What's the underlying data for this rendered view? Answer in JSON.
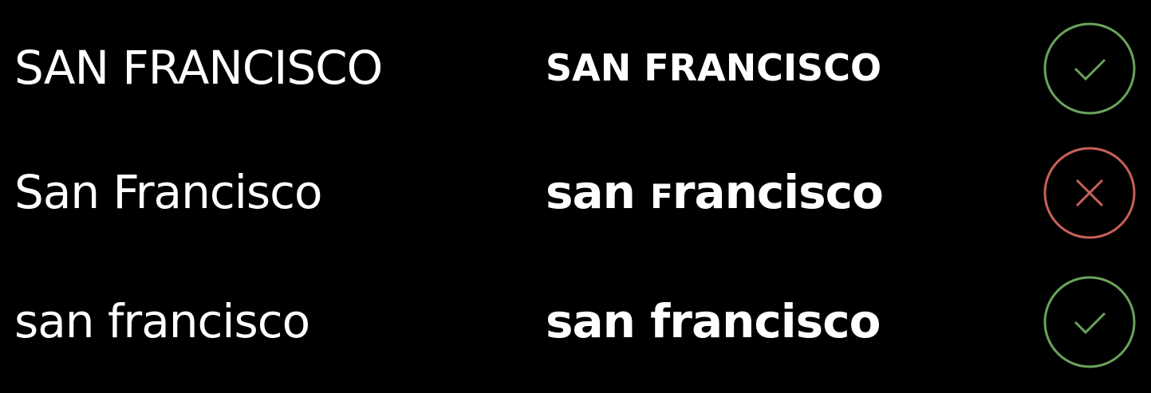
{
  "rows": [
    {
      "left": "SAN FRANCISCO",
      "right": "SAN FRANCISCO",
      "status": "check-icon",
      "status_color": "#6aa35b"
    },
    {
      "left": "San Francisco",
      "right_prefix": "san ",
      "right_small_cap": "F",
      "right_suffix": "rancisco",
      "status": "cross-icon",
      "status_color": "#c9605a"
    },
    {
      "left": "san francisco",
      "right": "san francisco",
      "status": "check-icon",
      "status_color": "#6aa35b"
    }
  ]
}
